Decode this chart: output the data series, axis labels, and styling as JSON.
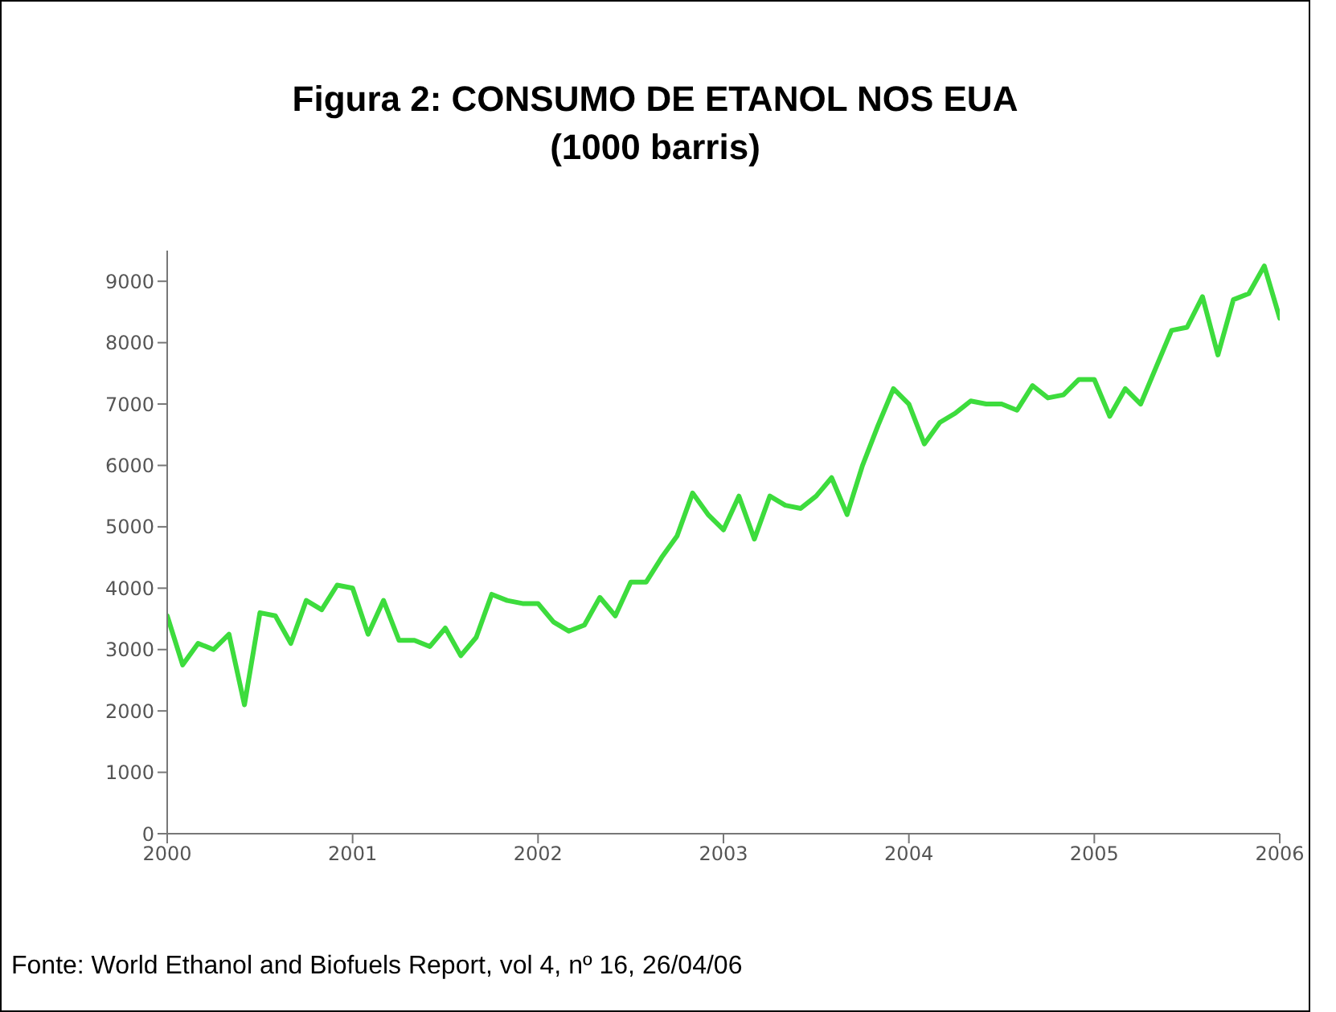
{
  "chart_data": {
    "type": "line",
    "title": "Figura 2: CONSUMO DE ETANOL NOS EUA",
    "subtitle": "(1000 barris)",
    "annotations": [
      "Fonte: World Ethanol and Biofuels Report, vol 4, nº 16, 26/04/06"
    ],
    "x": [
      "2000-01",
      "2000-02",
      "2000-03",
      "2000-04",
      "2000-05",
      "2000-06",
      "2000-07",
      "2000-08",
      "2000-09",
      "2000-10",
      "2000-11",
      "2000-12",
      "2001-01",
      "2001-02",
      "2001-03",
      "2001-04",
      "2001-05",
      "2001-06",
      "2001-07",
      "2001-08",
      "2001-09",
      "2001-10",
      "2001-11",
      "2001-12",
      "2002-01",
      "2002-02",
      "2002-03",
      "2002-04",
      "2002-05",
      "2002-06",
      "2002-07",
      "2002-08",
      "2002-09",
      "2002-10",
      "2002-11",
      "2002-12",
      "2003-01",
      "2003-02",
      "2003-03",
      "2003-04",
      "2003-05",
      "2003-06",
      "2003-07",
      "2003-08",
      "2003-09",
      "2003-10",
      "2003-11",
      "2003-12",
      "2004-01",
      "2004-02",
      "2004-03",
      "2004-04",
      "2004-05",
      "2004-06",
      "2004-07",
      "2004-08",
      "2004-09",
      "2004-10",
      "2004-11",
      "2004-12",
      "2005-01",
      "2005-02",
      "2005-03",
      "2005-04",
      "2005-05",
      "2005-06",
      "2005-07",
      "2005-08",
      "2005-09",
      "2005-10",
      "2005-11",
      "2005-12",
      "2006-01"
    ],
    "series": [
      {
        "color": "#3ddc3d",
        "values": [
          3550,
          2750,
          3100,
          3000,
          3250,
          2100,
          3600,
          3550,
          3100,
          3800,
          3650,
          4050,
          4000,
          3250,
          3800,
          3150,
          3150,
          3050,
          3350,
          2900,
          3200,
          3900,
          3800,
          3750,
          3750,
          3450,
          3300,
          3400,
          3850,
          3550,
          4100,
          4100,
          4500,
          4850,
          5550,
          5200,
          4950,
          5500,
          4800,
          5500,
          5350,
          5300,
          5500,
          5800,
          5200,
          6000,
          6650,
          7250,
          7000,
          6350,
          6700,
          6850,
          7050,
          7000,
          7000,
          6900,
          7300,
          7100,
          7150,
          7400,
          7400,
          6800,
          7250,
          7000,
          7600,
          8200,
          8250,
          8750,
          7800,
          8700,
          8800,
          9250,
          8400
        ]
      }
    ],
    "xlim": [
      "2000",
      "2006"
    ],
    "xticks": [
      "2000",
      "2001",
      "2002",
      "2003",
      "2004",
      "2005",
      "2006"
    ],
    "ylim": [
      0,
      9500
    ],
    "yticks": [
      0,
      1000,
      2000,
      3000,
      4000,
      5000,
      6000,
      7000,
      8000,
      9000
    ]
  }
}
